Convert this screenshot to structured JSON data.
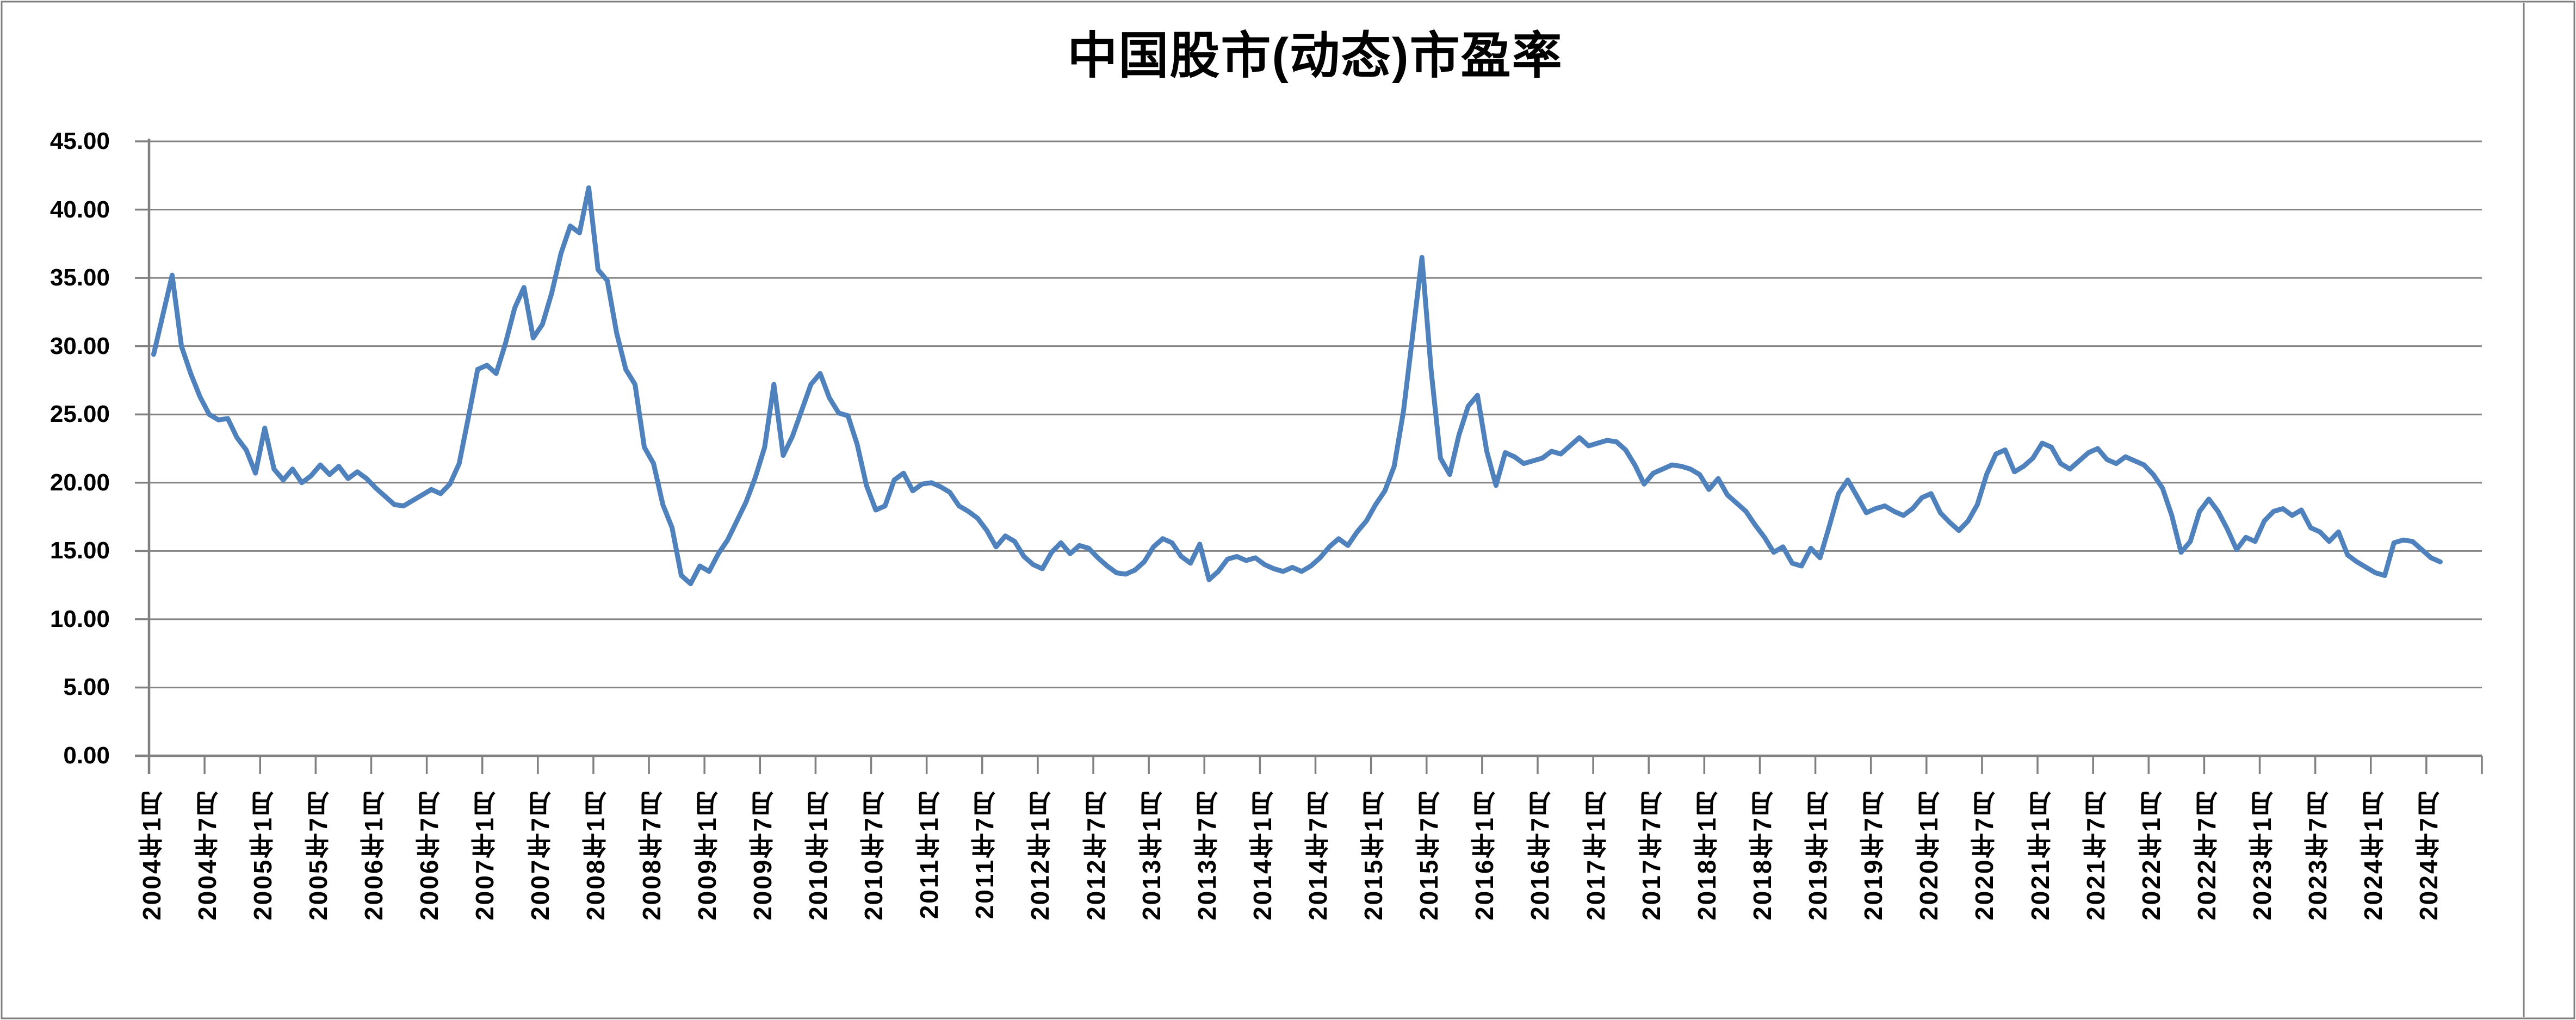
{
  "title": "中国股市(动态)市盈率",
  "colors": {
    "line": "#4F81BD",
    "grid": "#858585",
    "axis": "#808080",
    "text": "#000000",
    "frame": "#7F7F7F"
  },
  "chart_data": {
    "type": "line",
    "title": "中国股市(动态)市盈率",
    "xlabel": "",
    "ylabel": "",
    "ylim": [
      0,
      45
    ],
    "y_tick_step": 5,
    "y_tick_labels": [
      "45.00",
      "40.00",
      "35.00",
      "30.00",
      "25.00",
      "20.00",
      "15.00",
      "10.00",
      "5.00",
      "0.00"
    ],
    "grid": true,
    "legend": "none",
    "x_start": "2004-01",
    "x_end": "2024-08",
    "x_frequency": "monthly",
    "x_axis_total_categories": 252,
    "x_tick_interval_months": 6,
    "x_tick_labels": [
      "2004年1月",
      "2004年7月",
      "2005年1月",
      "2005年7月",
      "2006年1月",
      "2006年7月",
      "2007年1月",
      "2007年7月",
      "2008年1月",
      "2008年7月",
      "2009年1月",
      "2009年7月",
      "2010年1月",
      "2010年7月",
      "2011年1月",
      "2011年7月",
      "2012年1月",
      "2012年7月",
      "2013年1月",
      "2013年7月",
      "2014年1月",
      "2014年7月",
      "2015年1月",
      "2015年7月",
      "2016年1月",
      "2016年7月",
      "2017年1月",
      "2017年7月",
      "2018年1月",
      "2018年7月",
      "2019年1月",
      "2019年7月",
      "2020年1月",
      "2020年7月",
      "2021年1月",
      "2021年7月",
      "2022年1月",
      "2022年7月",
      "2023年1月",
      "2023年7月",
      "2024年1月",
      "2024年7月"
    ],
    "series": [
      {
        "name": "中国股市(动态)市盈率",
        "values": [
          29.4,
          32.3,
          35.2,
          30.0,
          28.0,
          26.3,
          25.0,
          24.6,
          24.7,
          23.3,
          22.4,
          20.7,
          24.0,
          21.0,
          20.2,
          21.0,
          20.0,
          20.5,
          21.3,
          20.6,
          21.2,
          20.3,
          20.8,
          20.3,
          19.6,
          19.0,
          18.4,
          18.3,
          18.7,
          19.1,
          19.5,
          19.2,
          19.9,
          21.4,
          24.8,
          28.3,
          28.6,
          28.0,
          30.2,
          32.8,
          34.3,
          30.6,
          31.6,
          33.9,
          36.8,
          38.8,
          38.3,
          41.6,
          35.6,
          34.8,
          31.0,
          28.3,
          27.2,
          22.6,
          21.4,
          18.4,
          16.7,
          13.2,
          12.6,
          13.9,
          13.5,
          14.8,
          15.8,
          17.2,
          18.6,
          20.4,
          22.6,
          27.2,
          22.0,
          23.4,
          25.3,
          27.2,
          28.0,
          26.2,
          25.1,
          24.9,
          22.8,
          19.8,
          18.0,
          18.3,
          20.2,
          20.7,
          19.4,
          19.9,
          20.0,
          19.7,
          19.3,
          18.3,
          17.9,
          17.4,
          16.5,
          15.3,
          16.1,
          15.7,
          14.6,
          14.0,
          13.7,
          14.9,
          15.6,
          14.8,
          15.4,
          15.2,
          14.5,
          13.9,
          13.4,
          13.3,
          13.6,
          14.2,
          15.3,
          15.9,
          15.6,
          14.6,
          14.1,
          15.5,
          12.9,
          13.5,
          14.4,
          14.6,
          14.3,
          14.5,
          14.0,
          13.7,
          13.5,
          13.8,
          13.5,
          13.9,
          14.5,
          15.3,
          15.9,
          15.4,
          16.4,
          17.2,
          18.4,
          19.4,
          21.2,
          25.2,
          30.8,
          36.5,
          28.2,
          21.8,
          20.6,
          23.5,
          25.6,
          26.4,
          22.3,
          19.8,
          22.2,
          21.9,
          21.4,
          21.6,
          21.8,
          22.3,
          22.1,
          22.7,
          23.3,
          22.7,
          22.9,
          23.1,
          23.0,
          22.4,
          21.3,
          19.9,
          20.7,
          21.0,
          21.3,
          21.2,
          21.0,
          20.6,
          19.5,
          20.3,
          19.1,
          18.5,
          17.9,
          16.9,
          16.0,
          14.9,
          15.3,
          14.1,
          13.9,
          15.2,
          14.5,
          16.8,
          19.2,
          20.2,
          19.0,
          17.8,
          18.1,
          18.3,
          17.9,
          17.6,
          18.1,
          18.9,
          19.2,
          17.8,
          17.1,
          16.5,
          17.2,
          18.4,
          20.6,
          22.1,
          22.4,
          20.8,
          21.2,
          21.8,
          22.9,
          22.6,
          21.4,
          21.0,
          21.6,
          22.2,
          22.5,
          21.7,
          21.4,
          21.9,
          21.6,
          21.3,
          20.6,
          19.6,
          17.6,
          14.9,
          15.7,
          17.9,
          18.8,
          17.9,
          16.6,
          15.1,
          16.0,
          15.7,
          17.2,
          17.9,
          18.1,
          17.6,
          18.0,
          16.7,
          16.4,
          15.7,
          16.4,
          14.7,
          14.2,
          13.8,
          13.4,
          13.2,
          15.6,
          15.8,
          15.7,
          15.1,
          14.5,
          14.2
        ]
      }
    ]
  }
}
